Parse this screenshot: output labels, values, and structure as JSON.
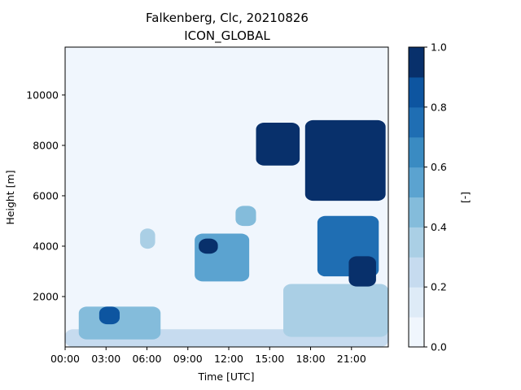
{
  "chart_data": {
    "type": "heatmap",
    "title": "Falkenberg, Clc, 20210826",
    "subtitle": "ICON_GLOBAL",
    "xlabel": "Time [UTC]",
    "ylabel": "Height [m]",
    "colorbar_label": "[-]",
    "x_ticks": [
      "00:00",
      "03:00",
      "06:00",
      "09:00",
      "12:00",
      "15:00",
      "18:00",
      "21:00"
    ],
    "x_tick_hours": [
      0,
      3,
      6,
      9,
      12,
      15,
      18,
      21
    ],
    "xlim_hours": [
      0,
      23.7
    ],
    "y_ticks": [
      2000,
      4000,
      6000,
      8000,
      10000
    ],
    "ylim": [
      0,
      11900
    ],
    "colorbar_ticks": [
      "0.0",
      "0.2",
      "0.4",
      "0.6",
      "0.8",
      "1.0"
    ],
    "levels": [
      0.0,
      0.1,
      0.2,
      0.3,
      0.4,
      0.5,
      0.6,
      0.7,
      0.8,
      0.9,
      1.0
    ],
    "colormap": [
      "#f0f6fd",
      "#deebf7",
      "#c6dbef",
      "#aacfe5",
      "#84bcdb",
      "#5ba3d0",
      "#3a8bc2",
      "#1f6eb3",
      "#0d55a0",
      "#08306b"
    ],
    "value_range": [
      0,
      1
    ],
    "cloud_regions": [
      {
        "t": [
          17.6,
          23.5
        ],
        "h": [
          5800,
          9000
        ],
        "value": 1.0
      },
      {
        "t": [
          14.0,
          17.2
        ],
        "h": [
          7200,
          8900
        ],
        "value": 0.95
      },
      {
        "t": [
          18.5,
          23.0
        ],
        "h": [
          2800,
          5200
        ],
        "value": 0.7
      },
      {
        "t": [
          20.8,
          22.8
        ],
        "h": [
          2400,
          3600
        ],
        "value": 0.95
      },
      {
        "t": [
          9.5,
          13.5
        ],
        "h": [
          2600,
          4500
        ],
        "value": 0.55
      },
      {
        "t": [
          9.8,
          11.2
        ],
        "h": [
          3700,
          4300
        ],
        "value": 0.9
      },
      {
        "t": [
          1.0,
          7.0
        ],
        "h": [
          300,
          1600
        ],
        "value": 0.4
      },
      {
        "t": [
          2.5,
          4.0
        ],
        "h": [
          900,
          1600
        ],
        "value": 0.85
      },
      {
        "t": [
          0.0,
          23.7
        ],
        "h": [
          0,
          700
        ],
        "value": 0.25
      },
      {
        "t": [
          12.5,
          14.0
        ],
        "h": [
          4800,
          5600
        ],
        "value": 0.4
      },
      {
        "t": [
          5.5,
          6.6
        ],
        "h": [
          3900,
          4700
        ],
        "value": 0.3
      },
      {
        "t": [
          16.0,
          23.7
        ],
        "h": [
          400,
          2500
        ],
        "value": 0.35
      }
    ]
  }
}
